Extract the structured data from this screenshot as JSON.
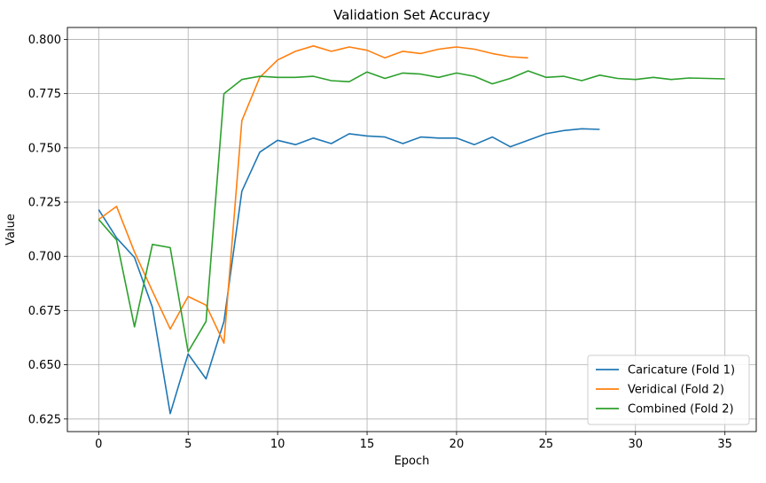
{
  "chart_data": {
    "type": "line",
    "title": "Validation Set Accuracy",
    "xlabel": "Epoch",
    "ylabel": "Value",
    "xlim": [
      -1.75,
      36.75
    ],
    "ylim": [
      0.6192,
      0.8055
    ],
    "xticks": [
      0,
      5,
      10,
      15,
      20,
      25,
      30,
      35
    ],
    "yticks": [
      0.625,
      0.65,
      0.675,
      0.7,
      0.725,
      0.75,
      0.775,
      0.8
    ],
    "ytick_labels": [
      "0.625",
      "0.650",
      "0.675",
      "0.700",
      "0.725",
      "0.750",
      "0.775",
      "0.800"
    ],
    "grid": true,
    "legend_position": "lower-right",
    "series": [
      {
        "name": "Caricature (Fold 1)",
        "color": "#1f77b4",
        "x": [
          0,
          1,
          2,
          3,
          4,
          5,
          6,
          7,
          8,
          9,
          10,
          11,
          12,
          13,
          14,
          15,
          16,
          17,
          18,
          19,
          20,
          21,
          22,
          23,
          24,
          25,
          26,
          27,
          28
        ],
        "values": [
          0.7215,
          0.7085,
          0.6995,
          0.6765,
          0.6275,
          0.655,
          0.6435,
          0.67,
          0.73,
          0.748,
          0.7535,
          0.7515,
          0.7545,
          0.752,
          0.7565,
          0.7555,
          0.755,
          0.752,
          0.755,
          0.7545,
          0.7545,
          0.7515,
          0.755,
          0.7505,
          0.7535,
          0.7565,
          0.758,
          0.7588,
          0.7585
        ]
      },
      {
        "name": "Veridical (Fold 2)",
        "color": "#ff7f0e",
        "x": [
          0,
          1,
          2,
          3,
          4,
          5,
          6,
          7,
          8,
          9,
          10,
          11,
          12,
          13,
          14,
          15,
          16,
          17,
          18,
          19,
          20,
          21,
          22,
          23,
          24
        ],
        "values": [
          0.717,
          0.723,
          0.702,
          0.684,
          0.6665,
          0.6815,
          0.6775,
          0.66,
          0.7625,
          0.7825,
          0.7905,
          0.7945,
          0.797,
          0.7945,
          0.7965,
          0.795,
          0.7915,
          0.7945,
          0.7935,
          0.7955,
          0.7965,
          0.7955,
          0.7935,
          0.792,
          0.7915
        ]
      },
      {
        "name": "Combined (Fold 2)",
        "color": "#2ca02c",
        "x": [
          0,
          1,
          2,
          3,
          4,
          5,
          6,
          7,
          8,
          9,
          10,
          11,
          12,
          13,
          14,
          15,
          16,
          17,
          18,
          19,
          20,
          21,
          22,
          23,
          24,
          25,
          26,
          27,
          28,
          29,
          30,
          31,
          32,
          33,
          34,
          35
        ],
        "values": [
          0.717,
          0.7075,
          0.6675,
          0.7055,
          0.704,
          0.656,
          0.67,
          0.775,
          0.7815,
          0.783,
          0.7825,
          0.7825,
          0.783,
          0.781,
          0.7805,
          0.785,
          0.782,
          0.7845,
          0.784,
          0.7825,
          0.7845,
          0.783,
          0.7795,
          0.782,
          0.7855,
          0.7825,
          0.783,
          0.781,
          0.7835,
          0.782,
          0.7815,
          0.7825,
          0.7815,
          0.7822,
          0.782,
          0.7818
        ]
      }
    ]
  }
}
